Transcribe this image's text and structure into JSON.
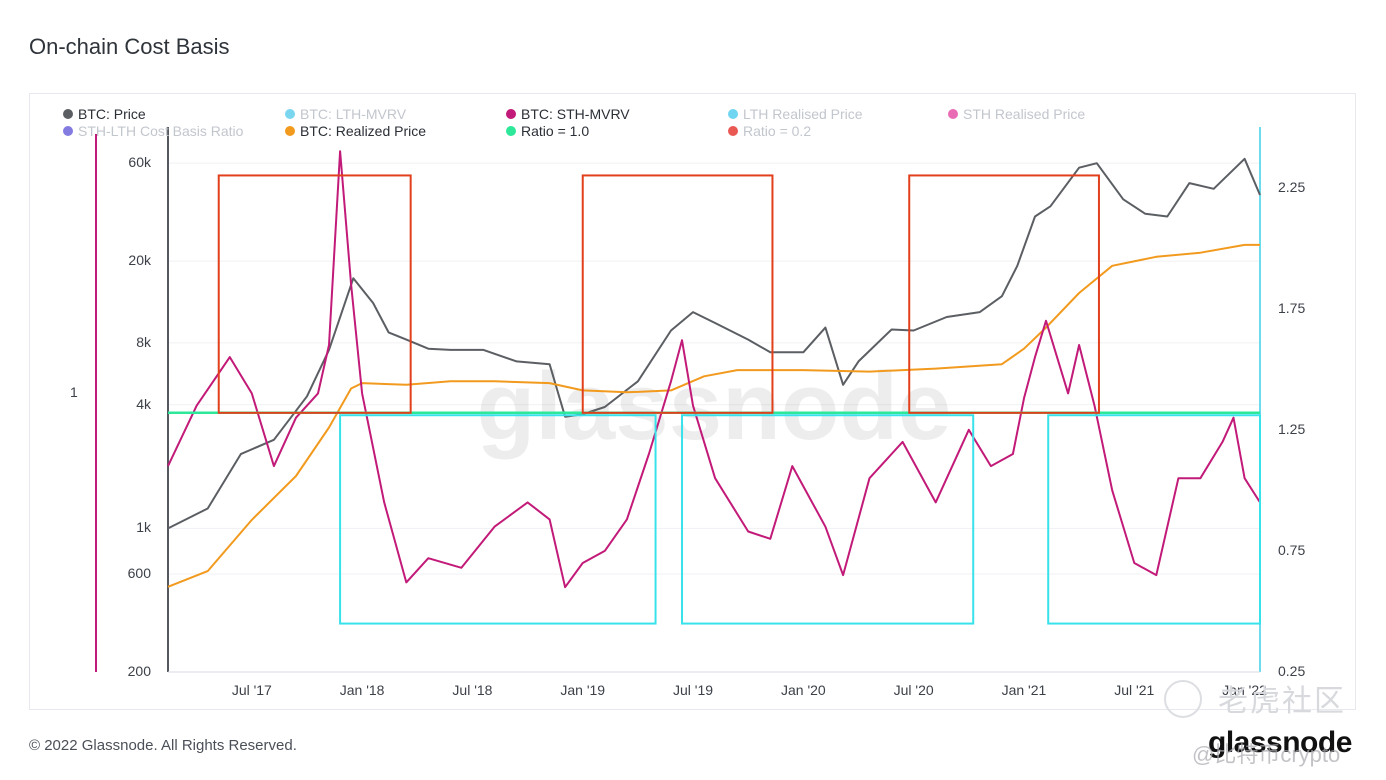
{
  "page": {
    "title": "On-chain Cost Basis",
    "copyright": "© 2022 Glassnode. All Rights Reserved.",
    "brand": "glassnode",
    "watermark_center": "glassnode",
    "watermark_corner": "老虎社区",
    "watermark_handle": "@比特币crypto"
  },
  "legend": [
    {
      "label": "BTC: Price",
      "color": "#5b5e63",
      "active": true
    },
    {
      "label": "BTC: LTH-MVRV",
      "color": "#4cc8e8",
      "active": false
    },
    {
      "label": "BTC: STH-MVRV",
      "color": "#c21a78",
      "active": true
    },
    {
      "label": "LTH Realised Price",
      "color": "#3fc7ec",
      "active": false
    },
    {
      "label": "STH Realised Price",
      "color": "#e23a9a",
      "active": false
    },
    {
      "label": "STH-LTH Cost Basis Ratio",
      "color": "#5a4fd6",
      "active": false
    },
    {
      "label": "BTC: Realized Price",
      "color": "#f29a1e",
      "active": true
    },
    {
      "label": "Ratio = 1.0",
      "color": "#2ee89a",
      "active": true
    },
    {
      "label": "Ratio = 0.2",
      "color": "#e3201b",
      "active": false
    }
  ],
  "chart_data": {
    "type": "line",
    "title": "On-chain Cost Basis",
    "x_range": [
      2017.12,
      2022.07
    ],
    "x_ticks": [
      "Jul '17",
      "Jan '18",
      "Jul '18",
      "Jan '19",
      "Jul '19",
      "Jan '20",
      "Jul '20",
      "Jan '21",
      "Jul '21",
      "Jan '22"
    ],
    "y_left": {
      "scale": "log",
      "ticks": [
        "200",
        "600",
        "1k",
        "4k",
        "8k",
        "20k",
        "60k"
      ],
      "range": [
        200,
        90000
      ]
    },
    "y_right": {
      "scale": "linear",
      "ticks": [
        "0.25",
        "0.75",
        "1.25",
        "1.75",
        "2.25"
      ],
      "range": [
        0.25,
        2.5
      ]
    },
    "y_far_left": {
      "ticks": [
        "1"
      ]
    },
    "series": [
      {
        "name": "BTC: Price",
        "axis": "left",
        "color": "#5b5e63",
        "x": [
          2017.12,
          2017.3,
          2017.45,
          2017.6,
          2017.75,
          2017.85,
          2017.96,
          2018.05,
          2018.12,
          2018.2,
          2018.3,
          2018.4,
          2018.55,
          2018.7,
          2018.85,
          2018.92,
          2019.0,
          2019.1,
          2019.25,
          2019.4,
          2019.5,
          2019.6,
          2019.75,
          2019.85,
          2020.0,
          2020.1,
          2020.18,
          2020.25,
          2020.4,
          2020.5,
          2020.65,
          2020.8,
          2020.9,
          2020.97,
          2021.05,
          2021.12,
          2021.25,
          2021.33,
          2021.45,
          2021.55,
          2021.65,
          2021.75,
          2021.86,
          2022.0,
          2022.07
        ],
        "y": [
          1000,
          1250,
          2300,
          2700,
          4400,
          7400,
          16500,
          12500,
          9000,
          8300,
          7500,
          7400,
          7400,
          6500,
          6300,
          3500,
          3600,
          3900,
          5200,
          9200,
          11300,
          10000,
          8300,
          7200,
          7200,
          9500,
          5000,
          6500,
          9300,
          9200,
          10700,
          11300,
          13500,
          19000,
          33000,
          37000,
          57000,
          60000,
          40000,
          34000,
          33000,
          48000,
          45000,
          63000,
          42000
        ]
      },
      {
        "name": "BTC: Realized Price",
        "axis": "left",
        "color": "#f29a1e",
        "x": [
          2017.12,
          2017.3,
          2017.5,
          2017.7,
          2017.85,
          2017.95,
          2018.0,
          2018.2,
          2018.4,
          2018.6,
          2018.85,
          2019.0,
          2019.2,
          2019.4,
          2019.55,
          2019.7,
          2020.0,
          2020.3,
          2020.6,
          2020.9,
          2021.0,
          2021.1,
          2021.25,
          2021.4,
          2021.6,
          2021.8,
          2022.0,
          2022.07
        ],
        "y": [
          520,
          620,
          1100,
          1800,
          3100,
          4800,
          5100,
          5000,
          5200,
          5200,
          5100,
          4700,
          4600,
          4700,
          5500,
          5900,
          5900,
          5800,
          6000,
          6300,
          7500,
          9500,
          14000,
          19000,
          21000,
          22000,
          24000,
          24000
        ]
      },
      {
        "name": "BTC: STH-MVRV",
        "axis": "right",
        "color": "#c21a78",
        "x": [
          2017.12,
          2017.25,
          2017.4,
          2017.5,
          2017.6,
          2017.7,
          2017.8,
          2017.85,
          2017.9,
          2017.95,
          2018.0,
          2018.1,
          2018.2,
          2018.3,
          2018.45,
          2018.6,
          2018.75,
          2018.85,
          2018.92,
          2019.0,
          2019.1,
          2019.2,
          2019.3,
          2019.4,
          2019.45,
          2019.5,
          2019.6,
          2019.75,
          2019.85,
          2019.95,
          2020.1,
          2020.18,
          2020.3,
          2020.45,
          2020.6,
          2020.75,
          2020.85,
          2020.95,
          2021.0,
          2021.05,
          2021.1,
          2021.2,
          2021.25,
          2021.32,
          2021.4,
          2021.5,
          2021.6,
          2021.7,
          2021.8,
          2021.9,
          2021.95,
          2022.0,
          2022.07
        ],
        "y": [
          1.1,
          1.35,
          1.55,
          1.4,
          1.1,
          1.3,
          1.4,
          1.6,
          2.4,
          1.85,
          1.4,
          0.95,
          0.62,
          0.72,
          0.68,
          0.85,
          0.95,
          0.88,
          0.6,
          0.7,
          0.75,
          0.88,
          1.15,
          1.45,
          1.62,
          1.35,
          1.05,
          0.83,
          0.8,
          1.1,
          0.85,
          0.65,
          1.05,
          1.2,
          0.95,
          1.25,
          1.1,
          1.15,
          1.38,
          1.55,
          1.7,
          1.4,
          1.6,
          1.35,
          1.0,
          0.7,
          0.65,
          1.05,
          1.05,
          1.2,
          1.3,
          1.05,
          0.95
        ]
      },
      {
        "name": "Ratio = 1.0",
        "axis": "right",
        "color": "#2ee89a",
        "x": [
          2017.12,
          2022.07
        ],
        "y": [
          1.32,
          1.32
        ]
      }
    ],
    "annotations": [
      {
        "type": "box",
        "color": "#e2401c",
        "x": [
          2017.35,
          2018.22
        ],
        "y_right": [
          1.32,
          2.3
        ]
      },
      {
        "type": "box",
        "color": "#e2401c",
        "x": [
          2019.0,
          2019.86
        ],
        "y_right": [
          1.32,
          2.3
        ]
      },
      {
        "type": "box",
        "color": "#e2401c",
        "x": [
          2020.48,
          2021.34
        ],
        "y_right": [
          1.32,
          2.3
        ]
      },
      {
        "type": "box",
        "color": "#38e2ea",
        "x": [
          2017.9,
          2019.33
        ],
        "y_right": [
          0.45,
          1.31
        ]
      },
      {
        "type": "box",
        "color": "#38e2ea",
        "x": [
          2019.45,
          2020.77
        ],
        "y_right": [
          0.45,
          1.31
        ]
      },
      {
        "type": "box",
        "color": "#38e2ea",
        "x": [
          2021.11,
          2022.07
        ],
        "y_right": [
          0.45,
          1.31
        ]
      }
    ]
  }
}
